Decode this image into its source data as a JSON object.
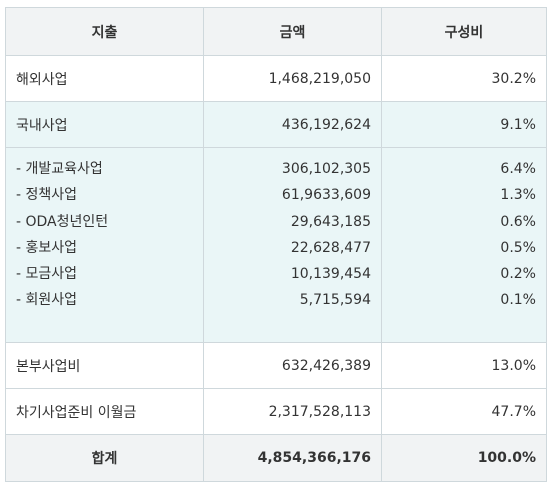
{
  "header": {
    "col1": "지출",
    "col2": "금액",
    "col3": "구성비"
  },
  "rows": [
    {
      "label": "해외사업",
      "amount": "1,468,219,050",
      "ratio": "30.2%"
    },
    {
      "label": "국내사업",
      "amount": "436,192,624",
      "ratio": "9.1%"
    }
  ],
  "sub_rows": [
    {
      "label": "- 개발교육사업",
      "amount": "306,102,305",
      "ratio": "6.4%"
    },
    {
      "label": "- 정책사업",
      "amount": "61,9633,609",
      "ratio": "1.3%"
    },
    {
      "label": "- ODA청년인턴",
      "amount": "29,643,185",
      "ratio": "0.6%"
    },
    {
      "label": "- 홍보사업",
      "amount": "22,628,477",
      "ratio": "0.5%"
    },
    {
      "label": "- 모금사업",
      "amount": "10,139,454",
      "ratio": "0.2%"
    },
    {
      "label": "- 회원사업",
      "amount": "5,715,594",
      "ratio": "0.1%"
    }
  ],
  "rows_after": [
    {
      "label": "본부사업비",
      "amount": "632,426,389",
      "ratio": "13.0%"
    },
    {
      "label": "차기사업준비 이월금",
      "amount": "2,317,528,113",
      "ratio": "47.7%"
    }
  ],
  "total": {
    "label": "합계",
    "amount": "4,854,366,176",
    "ratio": "100.0%"
  },
  "colors": {
    "header_bg": "#f1f3f4",
    "highlight_bg": "#eaf6f7",
    "border": "#cfd8dc"
  }
}
